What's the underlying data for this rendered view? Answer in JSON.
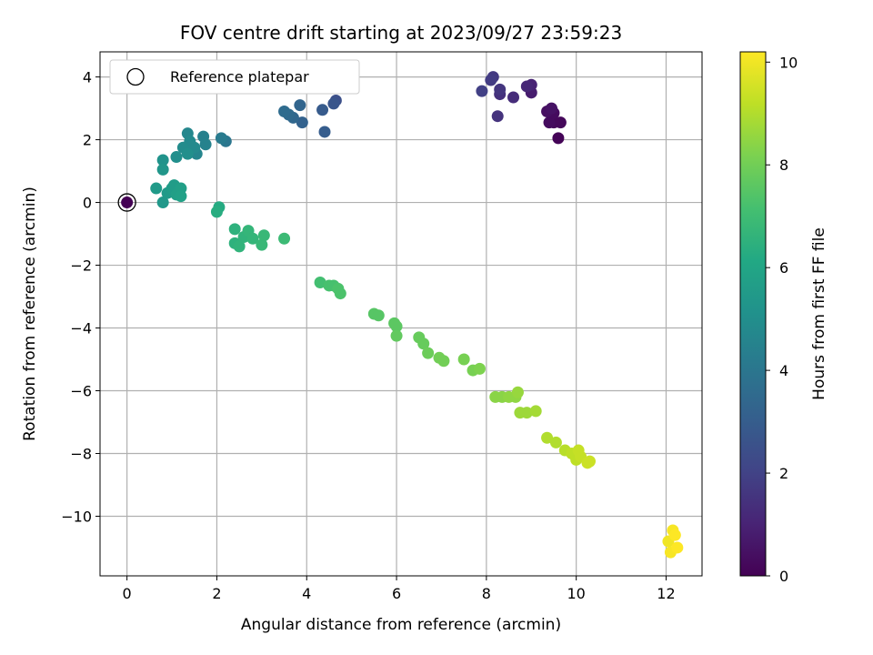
{
  "chart_data": {
    "type": "scatter",
    "title": "FOV centre drift starting at 2023/09/27 23:59:23",
    "xlabel": "Angular distance from reference (arcmin)",
    "ylabel": "Rotation from reference (arcmin)",
    "xlim": [
      -0.6,
      12.8
    ],
    "ylim": [
      -11.9,
      4.8
    ],
    "xticks": [
      0,
      2,
      4,
      6,
      8,
      10,
      12
    ],
    "yticks": [
      -10,
      -8,
      -6,
      -4,
      -2,
      0,
      2,
      4
    ],
    "ytick_labels": [
      "−10",
      "−8",
      "−6",
      "−4",
      "−2",
      "0",
      "2",
      "4"
    ],
    "grid": true,
    "legend": {
      "location": "top-left",
      "entries": [
        "Reference platepar"
      ]
    },
    "colorbar": {
      "label": "Hours from first FF file",
      "range": [
        0,
        10.2
      ],
      "ticks": [
        0,
        2,
        4,
        6,
        8,
        10
      ],
      "colormap": "viridis"
    },
    "reference_point": {
      "x": 0,
      "y": 0,
      "hours": 0
    },
    "points": [
      {
        "x": 9.6,
        "y": 2.05,
        "h": 0.1
      },
      {
        "x": 9.65,
        "y": 2.55,
        "h": 0.2
      },
      {
        "x": 9.5,
        "y": 2.55,
        "h": 0.2
      },
      {
        "x": 9.4,
        "y": 2.55,
        "h": 0.3
      },
      {
        "x": 9.5,
        "y": 2.85,
        "h": 0.3
      },
      {
        "x": 9.35,
        "y": 2.9,
        "h": 0.4
      },
      {
        "x": 9.45,
        "y": 3.0,
        "h": 0.5
      },
      {
        "x": 9.0,
        "y": 3.5,
        "h": 0.8
      },
      {
        "x": 9.0,
        "y": 3.75,
        "h": 1.0
      },
      {
        "x": 8.9,
        "y": 3.7,
        "h": 1.1
      },
      {
        "x": 8.6,
        "y": 3.35,
        "h": 1.3
      },
      {
        "x": 8.3,
        "y": 3.45,
        "h": 1.4
      },
      {
        "x": 8.25,
        "y": 2.75,
        "h": 1.5
      },
      {
        "x": 8.3,
        "y": 3.6,
        "h": 1.6
      },
      {
        "x": 8.15,
        "y": 4.0,
        "h": 1.7
      },
      {
        "x": 8.1,
        "y": 3.9,
        "h": 1.8
      },
      {
        "x": 7.9,
        "y": 3.55,
        "h": 1.9
      },
      {
        "x": 4.65,
        "y": 3.25,
        "h": 2.5
      },
      {
        "x": 4.6,
        "y": 3.15,
        "h": 2.7
      },
      {
        "x": 4.35,
        "y": 2.95,
        "h": 2.9
      },
      {
        "x": 4.4,
        "y": 2.25,
        "h": 3.0
      },
      {
        "x": 3.9,
        "y": 2.55,
        "h": 3.2
      },
      {
        "x": 3.85,
        "y": 3.1,
        "h": 3.3
      },
      {
        "x": 3.7,
        "y": 2.7,
        "h": 3.4
      },
      {
        "x": 3.6,
        "y": 2.8,
        "h": 3.5
      },
      {
        "x": 3.5,
        "y": 2.9,
        "h": 3.6
      },
      {
        "x": 2.2,
        "y": 1.95,
        "h": 4.0
      },
      {
        "x": 2.1,
        "y": 2.05,
        "h": 4.2
      },
      {
        "x": 1.7,
        "y": 2.1,
        "h": 4.4
      },
      {
        "x": 1.75,
        "y": 1.85,
        "h": 4.5
      },
      {
        "x": 1.55,
        "y": 1.55,
        "h": 4.6
      },
      {
        "x": 1.35,
        "y": 2.2,
        "h": 4.7
      },
      {
        "x": 1.4,
        "y": 1.95,
        "h": 4.8
      },
      {
        "x": 1.5,
        "y": 1.75,
        "h": 4.8
      },
      {
        "x": 1.25,
        "y": 1.75,
        "h": 4.9
      },
      {
        "x": 1.35,
        "y": 1.55,
        "h": 5.0
      },
      {
        "x": 1.1,
        "y": 1.45,
        "h": 5.0
      },
      {
        "x": 0.8,
        "y": 1.35,
        "h": 5.2
      },
      {
        "x": 0.8,
        "y": 1.05,
        "h": 5.3
      },
      {
        "x": 0.8,
        "y": 0.0,
        "h": 5.4
      },
      {
        "x": 0.65,
        "y": 0.45,
        "h": 5.5
      },
      {
        "x": 0.9,
        "y": 0.3,
        "h": 5.5
      },
      {
        "x": 1.0,
        "y": 0.45,
        "h": 5.6
      },
      {
        "x": 1.05,
        "y": 0.55,
        "h": 5.6
      },
      {
        "x": 1.1,
        "y": 0.25,
        "h": 5.7
      },
      {
        "x": 1.2,
        "y": 0.45,
        "h": 5.7
      },
      {
        "x": 1.2,
        "y": 0.2,
        "h": 5.8
      },
      {
        "x": 2.05,
        "y": -0.15,
        "h": 6.2
      },
      {
        "x": 2.0,
        "y": -0.3,
        "h": 6.3
      },
      {
        "x": 2.4,
        "y": -0.85,
        "h": 6.5
      },
      {
        "x": 2.4,
        "y": -1.3,
        "h": 6.5
      },
      {
        "x": 2.5,
        "y": -1.4,
        "h": 6.6
      },
      {
        "x": 2.6,
        "y": -1.1,
        "h": 6.6
      },
      {
        "x": 2.7,
        "y": -0.9,
        "h": 6.7
      },
      {
        "x": 2.8,
        "y": -1.15,
        "h": 6.7
      },
      {
        "x": 3.0,
        "y": -1.35,
        "h": 6.8
      },
      {
        "x": 3.05,
        "y": -1.05,
        "h": 6.8
      },
      {
        "x": 3.5,
        "y": -1.15,
        "h": 6.9
      },
      {
        "x": 4.3,
        "y": -2.55,
        "h": 7.1
      },
      {
        "x": 4.5,
        "y": -2.65,
        "h": 7.2
      },
      {
        "x": 4.6,
        "y": -2.65,
        "h": 7.2
      },
      {
        "x": 4.7,
        "y": -2.75,
        "h": 7.3
      },
      {
        "x": 4.75,
        "y": -2.9,
        "h": 7.3
      },
      {
        "x": 5.5,
        "y": -3.55,
        "h": 7.5
      },
      {
        "x": 5.6,
        "y": -3.6,
        "h": 7.5
      },
      {
        "x": 5.95,
        "y": -3.85,
        "h": 7.6
      },
      {
        "x": 6.0,
        "y": -3.95,
        "h": 7.6
      },
      {
        "x": 6.0,
        "y": -4.25,
        "h": 7.7
      },
      {
        "x": 6.5,
        "y": -4.3,
        "h": 7.8
      },
      {
        "x": 6.6,
        "y": -4.5,
        "h": 7.8
      },
      {
        "x": 6.7,
        "y": -4.8,
        "h": 7.9
      },
      {
        "x": 6.95,
        "y": -4.95,
        "h": 8.0
      },
      {
        "x": 7.05,
        "y": -5.05,
        "h": 8.0
      },
      {
        "x": 7.5,
        "y": -5.0,
        "h": 8.1
      },
      {
        "x": 7.7,
        "y": -5.35,
        "h": 8.1
      },
      {
        "x": 7.85,
        "y": -5.3,
        "h": 8.2
      },
      {
        "x": 8.2,
        "y": -6.2,
        "h": 8.4
      },
      {
        "x": 8.35,
        "y": -6.2,
        "h": 8.4
      },
      {
        "x": 8.5,
        "y": -6.2,
        "h": 8.5
      },
      {
        "x": 8.65,
        "y": -6.2,
        "h": 8.5
      },
      {
        "x": 8.7,
        "y": -6.05,
        "h": 8.6
      },
      {
        "x": 8.75,
        "y": -6.7,
        "h": 8.7
      },
      {
        "x": 8.9,
        "y": -6.7,
        "h": 8.7
      },
      {
        "x": 9.1,
        "y": -6.65,
        "h": 8.8
      },
      {
        "x": 9.35,
        "y": -7.5,
        "h": 9.0
      },
      {
        "x": 9.55,
        "y": -7.65,
        "h": 9.0
      },
      {
        "x": 9.75,
        "y": -7.9,
        "h": 9.1
      },
      {
        "x": 9.9,
        "y": -8.0,
        "h": 9.2
      },
      {
        "x": 10.0,
        "y": -8.2,
        "h": 9.2
      },
      {
        "x": 10.05,
        "y": -7.9,
        "h": 9.3
      },
      {
        "x": 10.1,
        "y": -8.1,
        "h": 9.3
      },
      {
        "x": 10.25,
        "y": -8.3,
        "h": 9.4
      },
      {
        "x": 10.3,
        "y": -8.25,
        "h": 9.4
      },
      {
        "x": 12.05,
        "y": -10.8,
        "h": 10.0
      },
      {
        "x": 12.15,
        "y": -10.45,
        "h": 10.1
      },
      {
        "x": 12.1,
        "y": -11.15,
        "h": 10.1
      },
      {
        "x": 12.25,
        "y": -11.0,
        "h": 10.2
      },
      {
        "x": 12.2,
        "y": -10.6,
        "h": 10.2
      }
    ]
  }
}
